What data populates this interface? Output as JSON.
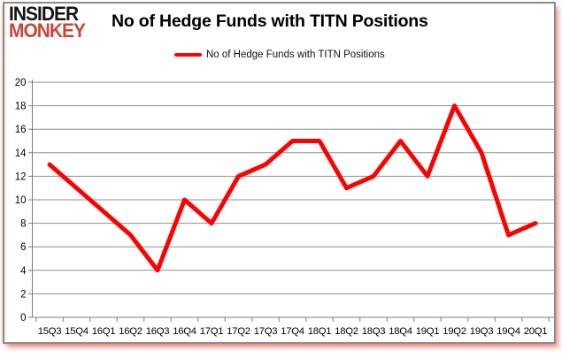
{
  "logo": {
    "line1": "INSIDER",
    "line2": "MONKEY"
  },
  "header": {
    "title": "No of Hedge Funds with TITN Positions"
  },
  "legend": {
    "label": "No of Hedge Funds with TITN Positions"
  },
  "colors": {
    "series_red": "#fe0000",
    "logo_red": "#c9463a",
    "gridline_gray": "#8f8f8f",
    "axis_gray": "#7d7d7d",
    "border_gray": "#8c8c8c",
    "text_black": "#000000"
  },
  "chart_data": {
    "type": "line",
    "title": "No of Hedge Funds with TITN Positions",
    "xlabel": "",
    "ylabel": "",
    "categories": [
      "15Q3",
      "15Q4",
      "16Q1",
      "16Q2",
      "16Q3",
      "16Q4",
      "17Q1",
      "17Q2",
      "17Q3",
      "17Q4",
      "18Q1",
      "18Q2",
      "18Q3",
      "18Q4",
      "19Q1",
      "19Q2",
      "19Q3",
      "19Q4",
      "20Q1"
    ],
    "series": [
      {
        "name": "No of Hedge Funds with TITN Positions",
        "color": "#fe0000",
        "values": [
          13,
          11,
          9,
          7,
          4,
          10,
          8,
          12,
          13,
          15,
          15,
          11,
          12,
          15,
          12,
          18,
          14,
          7,
          8
        ]
      }
    ],
    "y_ticks": [
      0,
      2,
      4,
      6,
      8,
      10,
      12,
      14,
      16,
      18,
      20
    ],
    "ylim": [
      0,
      20
    ],
    "grid": true,
    "legend_position": "top-center"
  }
}
